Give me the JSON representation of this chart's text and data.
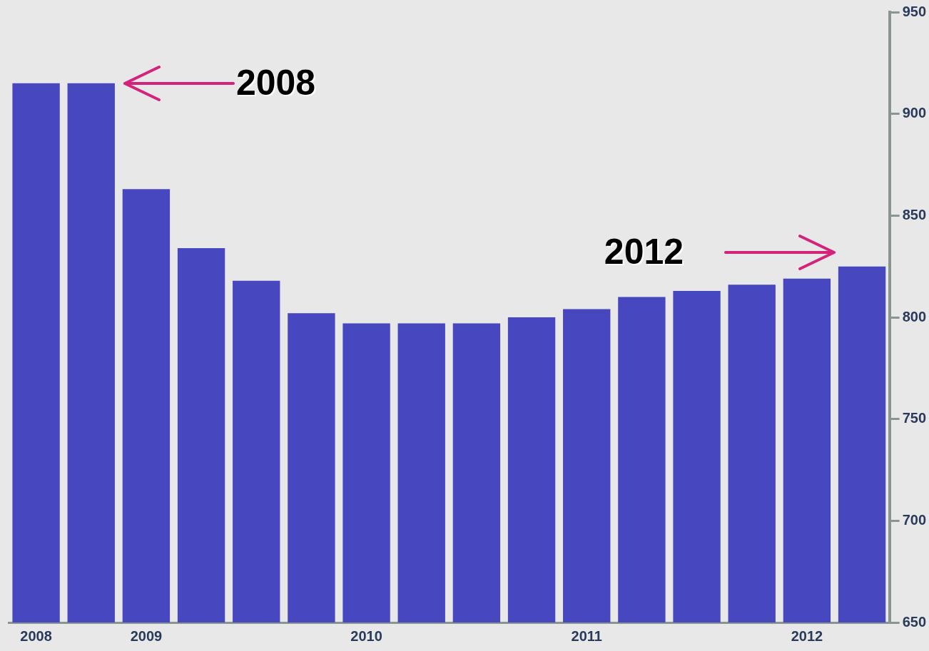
{
  "chart_data": {
    "type": "bar",
    "categories": [
      "2008",
      null,
      "2009",
      null,
      null,
      null,
      "2010",
      null,
      null,
      null,
      "2011",
      null,
      null,
      null,
      "2012",
      null
    ],
    "values": [
      915,
      915,
      863,
      834,
      818,
      802,
      797,
      797,
      797,
      800,
      804,
      810,
      813,
      816,
      819,
      825
    ],
    "color": "#4748c0",
    "ylim": [
      650,
      950
    ],
    "yticks": [
      650,
      700,
      750,
      800,
      850,
      900,
      950
    ],
    "grid": false,
    "legend": false,
    "annotations": [
      "2008",
      "2012"
    ]
  }
}
